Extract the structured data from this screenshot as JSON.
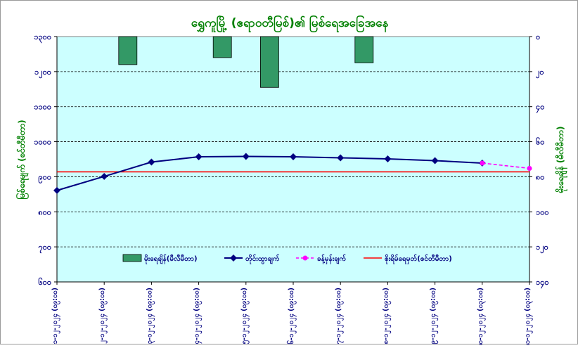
{
  "chart_data": {
    "type": "bar+line",
    "title": "ရွှေကူမြို့ (ဧရာဝတီမြစ်)၏ မြစ်ရေအခြေအနေ",
    "ylabel_left": "မြစ်ရေမျက် (စင်တီမီတာ)",
    "ylabel_right": "မိုးရေချိန် (မီလီမီတာ)",
    "categories": [
      "၁-၁၂-၂၀၂၄ (၀၉:၀၀)",
      "၂-၁၂-၂၀၂၄ (၀၉:၀၀)",
      "၃-၁၂-၂၀၂၄ (၀၉:၀၀)",
      "၄-၁၂-၂၀၂၄ (၀၉:၀၀)",
      "၅-၁၂-၂၀၂၄ (၀၉:၀၀)",
      "၆-၁၂-၂၀၂၄ (၀၉:၀၀)",
      "၇-၁၂-၂၀၂၄ (၀၉:၀၀)",
      "၈-၁၂-၂၀၂၄ (၀၉:၀၀)",
      "၉-၁၂-၂၀၂၄ (၀၉:၀၀)",
      "၁၀-၁၂-၂၀၂၄ (၀၃:၀၀)",
      "၁၁-၁၂-၂၀၂၄ (၀၃:၀၀)"
    ],
    "y_left": {
      "min": 600,
      "max": 1300,
      "ticks": [
        600,
        700,
        800,
        900,
        1000,
        1100,
        1200,
        1300
      ],
      "tick_labels": [
        "၆၀၀",
        "၇၀၀",
        "၈၀၀",
        "၉၀၀",
        "၁၀၀၀",
        "၁၁၀၀",
        "၁၂၀၀",
        "၁၃၀၀"
      ]
    },
    "y_right": {
      "min": 0,
      "max": 140,
      "reversed": true,
      "ticks": [
        0,
        20,
        40,
        60,
        80,
        100,
        120,
        140
      ],
      "tick_labels": [
        "၀",
        "၂၀",
        "၄၀",
        "၆၀",
        "၈၀",
        "၁၀၀",
        "၁၂၀",
        "၁၄၀"
      ]
    },
    "series": [
      {
        "name": "မိုးရေချိန်(မီလီမီတာ)",
        "type": "bar",
        "axis": "right",
        "color": "#339966",
        "values": [
          null,
          16,
          null,
          12,
          29,
          null,
          15,
          null,
          null,
          null,
          null
        ]
      },
      {
        "name": "တိုင်းထွာချက်",
        "type": "line",
        "axis": "left",
        "color": "#000080",
        "values": [
          861,
          901,
          942,
          957,
          958,
          957,
          954,
          951,
          946,
          939,
          null
        ]
      },
      {
        "name": "ခန့်မှန်းချက်",
        "type": "line",
        "axis": "left",
        "color": "#ff00ff",
        "dashed": true,
        "values": [
          null,
          null,
          null,
          null,
          null,
          null,
          null,
          null,
          null,
          939,
          924
        ]
      },
      {
        "name": "စိုးရိမ်ရေမှတ်(စင်တီမီတာ)",
        "type": "hline",
        "axis": "left",
        "color": "#ff0000",
        "value": 914
      }
    ],
    "grid": true,
    "legend_position": "bottom-center",
    "plot_background": "#ccffff"
  }
}
